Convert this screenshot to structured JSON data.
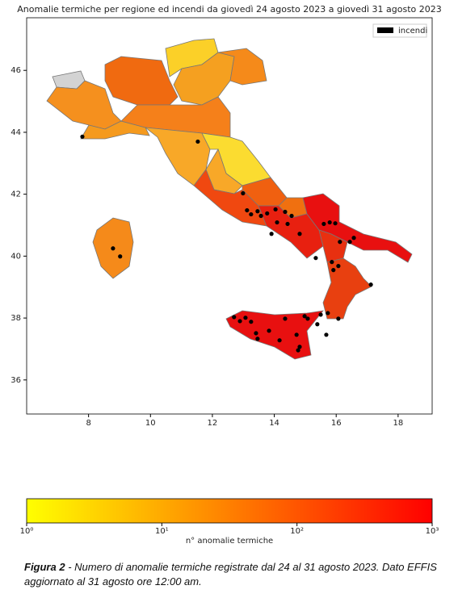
{
  "chart_data": {
    "type": "scatter",
    "title": "Anomalie termiche per regione ed incendi da giovedì 24 agosto 2023 a giovedì 31 agosto 2023",
    "xlim": [
      6.0,
      19.1
    ],
    "ylim": [
      34.9,
      47.7
    ],
    "xticks": [
      8,
      10,
      12,
      14,
      16,
      18
    ],
    "yticks": [
      36,
      38,
      40,
      42,
      44,
      46
    ],
    "legend": "upper right",
    "series": [
      {
        "name": "incendi",
        "color": "#000000",
        "x": [
          7.8,
          11.53,
          12.99,
          13.12,
          13.25,
          13.46,
          13.57,
          13.77,
          14.04,
          14.35,
          14.56,
          13.91,
          14.09,
          14.43,
          14.82,
          15.6,
          15.79,
          15.97,
          16.12,
          15.34,
          15.86,
          16.07,
          15.91,
          16.44,
          16.57,
          17.12,
          8.79,
          9.02,
          12.7,
          12.89,
          13.07,
          13.25,
          13.41,
          13.46,
          13.83,
          14.17,
          14.35,
          14.72,
          15.08,
          14.82,
          14.77,
          14.98,
          15.5,
          15.73,
          16.07,
          15.68,
          15.39
        ],
        "y": [
          43.86,
          43.7,
          42.03,
          41.48,
          41.35,
          41.45,
          41.3,
          41.38,
          41.51,
          41.43,
          41.3,
          40.72,
          41.09,
          41.04,
          40.72,
          41.04,
          41.09,
          41.06,
          40.46,
          39.94,
          39.81,
          39.68,
          39.55,
          40.46,
          40.59,
          39.08,
          40.25,
          39.99,
          38.03,
          37.9,
          38.01,
          37.88,
          37.51,
          37.33,
          37.59,
          37.28,
          37.98,
          37.46,
          37.98,
          37.07,
          36.96,
          38.06,
          38.11,
          38.16,
          37.98,
          37.46,
          37.8
        ]
      }
    ],
    "colorbar": {
      "label": "n° anomalie termiche",
      "log": true,
      "lim": [
        1,
        1000
      ],
      "colors": [
        "#ffff00",
        "#ff0000"
      ],
      "ticks": [
        {
          "value": 1,
          "label": "10⁰"
        },
        {
          "value": 10,
          "label": "10¹"
        },
        {
          "value": 100,
          "label": "10²"
        },
        {
          "value": 1000,
          "label": "10³"
        }
      ]
    }
  },
  "caption": {
    "label": "Figura 2",
    "text": "- Numero di anomalie termiche registrate dal 24 al 31 agosto 2023. Dato EFFIS aggiornato al 31 agosto ore 12:00 am."
  }
}
